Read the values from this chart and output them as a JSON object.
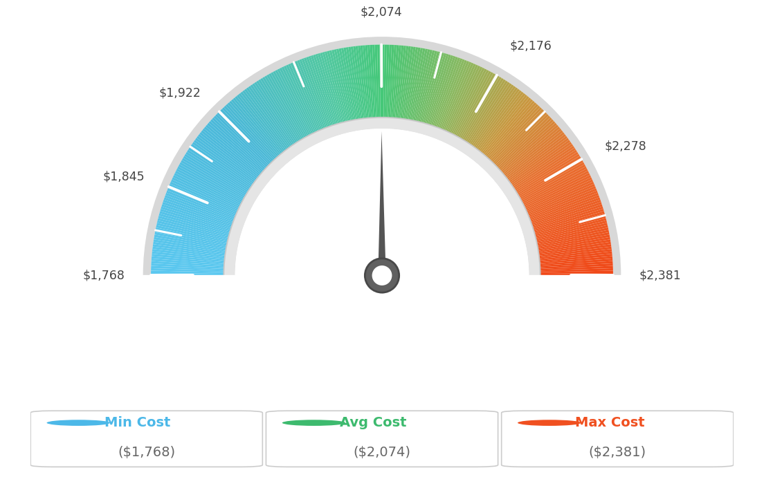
{
  "min_val": 1768,
  "avg_val": 2074,
  "max_val": 2381,
  "tick_labels": [
    "$1,768",
    "$1,845",
    "$1,922",
    "$2,074",
    "$2,176",
    "$2,278",
    "$2,381"
  ],
  "tick_values": [
    1768,
    1845,
    1922,
    2074,
    2176,
    2278,
    2381
  ],
  "legend_items": [
    {
      "label": "Min Cost",
      "value": "($1,768)",
      "color": "#4cb8e8"
    },
    {
      "label": "Avg Cost",
      "value": "($2,074)",
      "color": "#3dba6e"
    },
    {
      "label": "Max Cost",
      "value": "($2,381)",
      "color": "#f05020"
    }
  ],
  "background_color": "#ffffff",
  "needle_value": 2074,
  "color_stops": [
    [
      0.0,
      "#5bc8f0"
    ],
    [
      0.25,
      "#4ab8d8"
    ],
    [
      0.42,
      "#52c8a0"
    ],
    [
      0.5,
      "#45c878"
    ],
    [
      0.62,
      "#8cb860"
    ],
    [
      0.72,
      "#c89840"
    ],
    [
      0.82,
      "#e87030"
    ],
    [
      1.0,
      "#f04818"
    ]
  ]
}
